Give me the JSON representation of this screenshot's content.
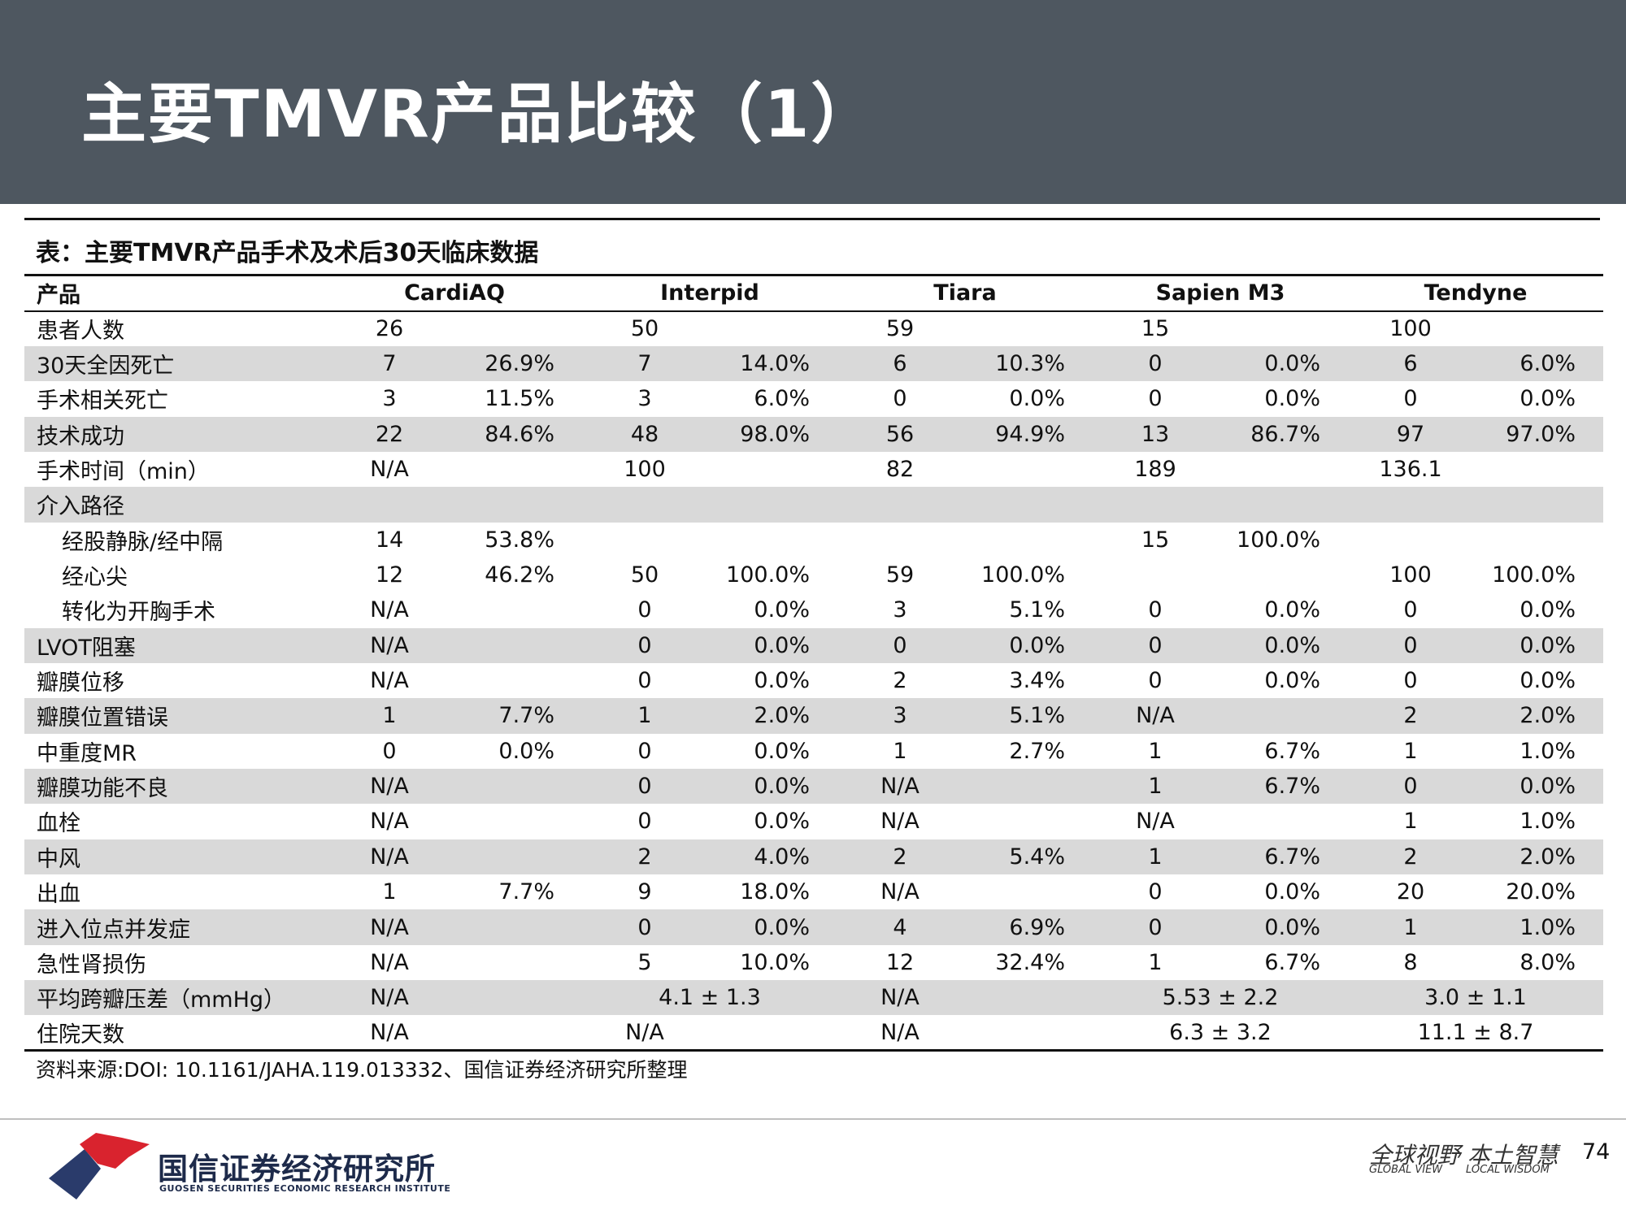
{
  "header": {
    "title": "主要TMVR产品比较（1）"
  },
  "table": {
    "caption": "表：主要TMVR产品手术及术后30天临床数据",
    "label_header": "产品",
    "products": [
      "CardiAQ",
      "Interpid",
      "Tiara",
      "Sapien M3",
      "Tendyne"
    ],
    "rows": [
      {
        "label": "患者人数",
        "indent": false,
        "shaded": false,
        "cells": [
          "26",
          "",
          "50",
          "",
          "59",
          "",
          "15",
          "",
          "100",
          ""
        ]
      },
      {
        "label": "30天全因死亡",
        "indent": false,
        "shaded": true,
        "cells": [
          "7",
          "26.9%",
          "7",
          "14.0%",
          "6",
          "10.3%",
          "0",
          "0.0%",
          "6",
          "6.0%"
        ]
      },
      {
        "label": "手术相关死亡",
        "indent": false,
        "shaded": false,
        "cells": [
          "3",
          "11.5%",
          "3",
          "6.0%",
          "0",
          "0.0%",
          "0",
          "0.0%",
          "0",
          "0.0%"
        ]
      },
      {
        "label": "技术成功",
        "indent": false,
        "shaded": true,
        "cells": [
          "22",
          "84.6%",
          "48",
          "98.0%",
          "56",
          "94.9%",
          "13",
          "86.7%",
          "97",
          "97.0%"
        ]
      },
      {
        "label": "手术时间（min）",
        "indent": false,
        "shaded": false,
        "cells": [
          "N/A",
          "",
          "100",
          "",
          "82",
          "",
          "189",
          "",
          "136.1",
          ""
        ]
      },
      {
        "label": "介入路径",
        "indent": false,
        "shaded": true,
        "cells": [
          "",
          "",
          "",
          "",
          "",
          "",
          "",
          "",
          "",
          ""
        ]
      },
      {
        "label": "经股静脉/经中隔",
        "indent": true,
        "shaded": false,
        "cells": [
          "14",
          "53.8%",
          "",
          "",
          "",
          "",
          "15",
          "100.0%",
          "",
          ""
        ]
      },
      {
        "label": "经心尖",
        "indent": true,
        "shaded": false,
        "cells": [
          "12",
          "46.2%",
          "50",
          "100.0%",
          "59",
          "100.0%",
          "",
          "",
          "100",
          "100.0%"
        ]
      },
      {
        "label": "转化为开胸手术",
        "indent": true,
        "shaded": false,
        "cells": [
          "N/A",
          "",
          "0",
          "0.0%",
          "3",
          "5.1%",
          "0",
          "0.0%",
          "0",
          "0.0%"
        ]
      },
      {
        "label": "LVOT阻塞",
        "indent": false,
        "shaded": true,
        "cells": [
          "N/A",
          "",
          "0",
          "0.0%",
          "0",
          "0.0%",
          "0",
          "0.0%",
          "0",
          "0.0%"
        ]
      },
      {
        "label": "瓣膜位移",
        "indent": false,
        "shaded": false,
        "cells": [
          "N/A",
          "",
          "0",
          "0.0%",
          "2",
          "3.4%",
          "0",
          "0.0%",
          "0",
          "0.0%"
        ]
      },
      {
        "label": "瓣膜位置错误",
        "indent": false,
        "shaded": true,
        "cells": [
          "1",
          "7.7%",
          "1",
          "2.0%",
          "3",
          "5.1%",
          "N/A",
          "",
          "2",
          "2.0%"
        ]
      },
      {
        "label": "中重度MR",
        "indent": false,
        "shaded": false,
        "cells": [
          "0",
          "0.0%",
          "0",
          "0.0%",
          "1",
          "2.7%",
          "1",
          "6.7%",
          "1",
          "1.0%"
        ]
      },
      {
        "label": "瓣膜功能不良",
        "indent": false,
        "shaded": true,
        "cells": [
          "N/A",
          "",
          "0",
          "0.0%",
          "N/A",
          "",
          "1",
          "6.7%",
          "0",
          "0.0%"
        ]
      },
      {
        "label": "血栓",
        "indent": false,
        "shaded": false,
        "cells": [
          "N/A",
          "",
          "0",
          "0.0%",
          "N/A",
          "",
          "N/A",
          "",
          "1",
          "1.0%"
        ]
      },
      {
        "label": "中风",
        "indent": false,
        "shaded": true,
        "cells": [
          "N/A",
          "",
          "2",
          "4.0%",
          "2",
          "5.4%",
          "1",
          "6.7%",
          "2",
          "2.0%"
        ]
      },
      {
        "label": "出血",
        "indent": false,
        "shaded": false,
        "cells": [
          "1",
          "7.7%",
          "9",
          "18.0%",
          "N/A",
          "",
          "0",
          "0.0%",
          "20",
          "20.0%"
        ]
      },
      {
        "label": "进入位点并发症",
        "indent": false,
        "shaded": true,
        "cells": [
          "N/A",
          "",
          "0",
          "0.0%",
          "4",
          "6.9%",
          "0",
          "0.0%",
          "1",
          "1.0%"
        ]
      },
      {
        "label": "急性肾损伤",
        "indent": false,
        "shaded": false,
        "cells": [
          "N/A",
          "",
          "5",
          "10.0%",
          "12",
          "32.4%",
          "1",
          "6.7%",
          "8",
          "8.0%"
        ]
      },
      {
        "label": "平均跨瓣压差（mmHg）",
        "indent": false,
        "shaded": true,
        "cells": [
          "N/A",
          "",
          "4.1 ± 1.3",
          "",
          "N/A",
          "",
          "5.53 ± 2.2",
          "",
          "3.0 ± 1.1",
          ""
        ]
      },
      {
        "label": "住院天数",
        "indent": false,
        "shaded": false,
        "cells": [
          "N/A",
          "",
          "N/A",
          "",
          "N/A",
          "",
          "6.3 ± 3.2",
          "",
          "11.1 ± 8.7",
          ""
        ]
      }
    ]
  },
  "source": "资料来源:DOI: 10.1161/JAHA.119.013332、国信证券经济研究所整理",
  "footer": {
    "company_name": "国信证券经济研究所",
    "company_name_en": "GUOSEN SECURITIES ECONOMIC RESEARCH INSTITUTE",
    "slogan_cn": "全球视野 本土智慧",
    "slogan_en_1": "GLOBAL VIEW",
    "slogan_en_2": "LOCAL WISDOM",
    "page_number": "74"
  },
  "colors": {
    "header_bg": "#4e5760",
    "row_shade": "#d9d9d9",
    "logo_red": "#d9232e",
    "logo_navy": "#2a3b6b"
  }
}
